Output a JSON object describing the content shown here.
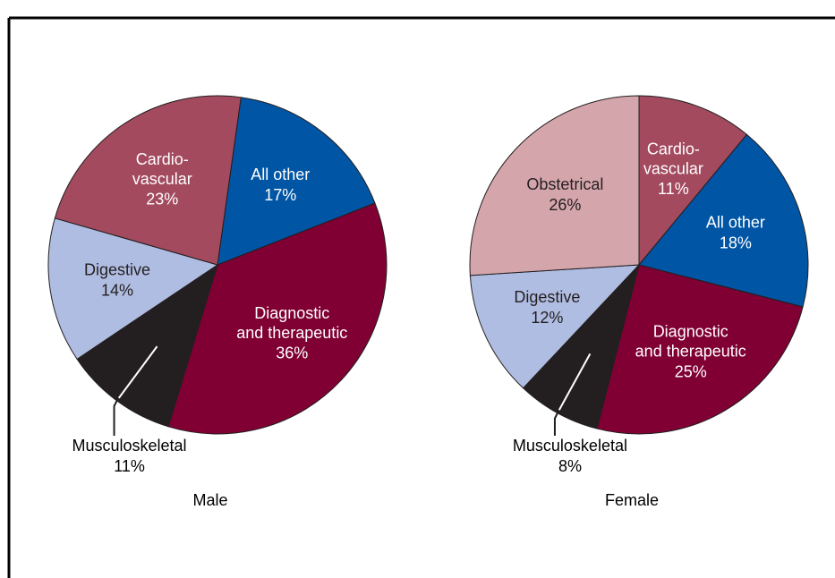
{
  "chart_data": [
    {
      "type": "pie",
      "title": "Male",
      "categories": [
        "All other",
        "Diagnostic\nand therapeutic",
        "Musculoskeletal",
        "Digestive",
        "Cardio-\nvascular"
      ],
      "values": [
        17,
        36,
        11,
        14,
        23
      ],
      "value_labels": [
        "17%",
        "36%",
        "11%",
        "14%",
        "23%"
      ],
      "colors": [
        "#0055a5",
        "#800033",
        "#231f20",
        "#b0bde2",
        "#a34a5e"
      ]
    },
    {
      "type": "pie",
      "title": "Female",
      "categories": [
        "Cardio-\nvascular",
        "All other",
        "Diagnostic\nand therapeutic",
        "Musculoskeletal",
        "Digestive",
        "Obstetrical"
      ],
      "values": [
        11,
        18,
        25,
        8,
        12,
        26
      ],
      "value_labels": [
        "11%",
        "18%",
        "25%",
        "8%",
        "12%",
        "26%"
      ],
      "colors": [
        "#a34a5e",
        "#0055a5",
        "#800033",
        "#231f20",
        "#b0bde2",
        "#d4a5ab"
      ]
    }
  ]
}
